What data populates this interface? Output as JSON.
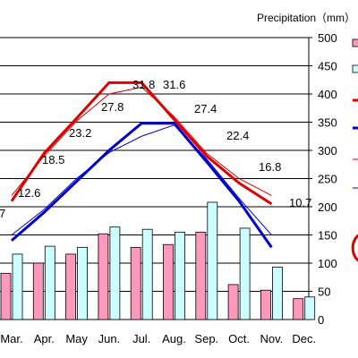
{
  "chart_data": {
    "type": "bar",
    "title": "",
    "right_axis_title": "Precipitation（mm）",
    "categories": [
      "Mar.",
      "Apr.",
      "May",
      "Jun.",
      "Jul.",
      "Aug.",
      "Sep.",
      "Oct.",
      "Nov.",
      "Dec."
    ],
    "right_axis": {
      "ylim": [
        0,
        500
      ],
      "ticks": [
        "0",
        "50",
        "100",
        "150",
        "200",
        "250",
        "300",
        "350",
        "400",
        "450",
        "500"
      ]
    },
    "grid": true,
    "bar_series": [
      {
        "color": "#ff99bb",
        "values": [
          82,
          100,
          116,
          152,
          128,
          133,
          155,
          62,
          52,
          37
        ]
      },
      {
        "color": "#ccffff",
        "values": [
          116,
          130,
          128,
          164,
          160,
          155,
          208,
          162,
          93,
          40
        ]
      }
    ],
    "line_series": [
      {
        "color": "#dd0000",
        "width": 3,
        "values": [
          210,
          295,
          357,
          420,
          420,
          355,
          290,
          242,
          205,
          null
        ]
      },
      {
        "color": "#dd0000",
        "width": 1,
        "values": [
          220,
          290,
          352,
          400,
          412,
          360,
          295,
          250,
          220,
          null
        ]
      },
      {
        "color": "#0000cc",
        "width": 3,
        "values": [
          140,
          190,
          245,
          300,
          348,
          348,
          280,
          210,
          128,
          null
        ]
      },
      {
        "color": "#0000cc",
        "width": 1,
        "values": [
          150,
          195,
          250,
          296,
          325,
          345,
          285,
          215,
          150,
          null
        ]
      }
    ],
    "data_labels": [
      "12.6",
      "18.5",
      "23.2",
      "27.8",
      "31.8",
      "31.6",
      "27.4",
      "22.4",
      "16.8",
      "10.7"
    ],
    "edge_labels": [
      "7"
    ],
    "legend": "right"
  }
}
